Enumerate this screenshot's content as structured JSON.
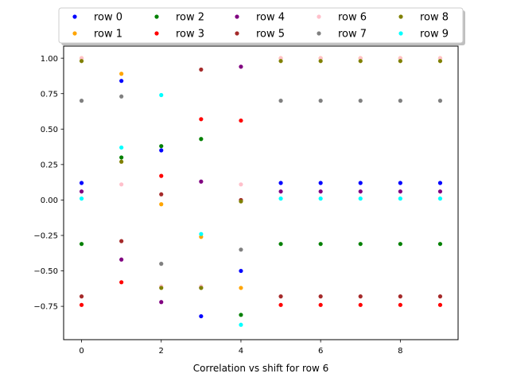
{
  "chart_data": {
    "type": "scatter",
    "title": "",
    "xlabel": "Correlation vs shift for row 6",
    "ylabel": "",
    "xlim": [
      -0.45,
      9.45
    ],
    "ylim": [
      -0.985,
      1.085
    ],
    "x": [
      0,
      1,
      2,
      3,
      4,
      5,
      6,
      7,
      8,
      9
    ],
    "xticks": [
      0,
      2,
      4,
      6,
      8
    ],
    "xtick_labels": [
      "0",
      "2",
      "4",
      "6",
      "8"
    ],
    "yticks": [
      -0.75,
      -0.5,
      -0.25,
      0.0,
      0.25,
      0.5,
      0.75,
      1.0
    ],
    "ytick_labels": [
      "−0.75",
      "−0.50",
      "−0.25",
      "0.00",
      "0.25",
      "0.50",
      "0.75",
      "1.00"
    ],
    "grid": false,
    "legend": {
      "placement": "top-center, above the axes",
      "columns": 5
    },
    "series": [
      {
        "name": "row 0",
        "color": "#0000ff",
        "values": [
          0.12,
          0.84,
          0.35,
          -0.82,
          -0.5,
          0.12,
          0.12,
          0.12,
          0.12,
          0.12
        ]
      },
      {
        "name": "row 1",
        "color": "#ffa500",
        "values": [
          1.0,
          0.89,
          -0.03,
          -0.26,
          -0.62,
          1.0,
          1.0,
          1.0,
          1.0,
          1.0
        ]
      },
      {
        "name": "row 2",
        "color": "#008000",
        "values": [
          -0.31,
          0.3,
          0.38,
          0.43,
          -0.81,
          -0.31,
          -0.31,
          -0.31,
          -0.31,
          -0.31
        ]
      },
      {
        "name": "row 3",
        "color": "#ff0000",
        "values": [
          -0.74,
          -0.58,
          0.17,
          0.57,
          0.56,
          -0.74,
          -0.74,
          -0.74,
          -0.74,
          -0.74
        ]
      },
      {
        "name": "row 4",
        "color": "#800080",
        "values": [
          0.06,
          -0.42,
          -0.72,
          0.13,
          0.94,
          0.06,
          0.06,
          0.06,
          0.06,
          0.06
        ]
      },
      {
        "name": "row 5",
        "color": "#a52a2a",
        "values": [
          -0.68,
          -0.29,
          0.04,
          0.92,
          0.0,
          -0.68,
          -0.68,
          -0.68,
          -0.68,
          -0.68
        ]
      },
      {
        "name": "row 6",
        "color": "#ffc0cb",
        "values": [
          1.0,
          0.11,
          -0.61,
          -0.61,
          0.11,
          1.0,
          1.0,
          1.0,
          1.0,
          1.0
        ]
      },
      {
        "name": "row 7",
        "color": "#808080",
        "values": [
          0.7,
          0.73,
          -0.45,
          -0.62,
          -0.35,
          0.7,
          0.7,
          0.7,
          0.7,
          0.7
        ]
      },
      {
        "name": "row 8",
        "color": "#808000",
        "values": [
          0.98,
          0.27,
          -0.62,
          -0.62,
          -0.01,
          0.98,
          0.98,
          0.98,
          0.98,
          0.98
        ]
      },
      {
        "name": "row 9",
        "color": "#00ffff",
        "values": [
          0.01,
          0.37,
          0.74,
          -0.24,
          -0.88,
          0.01,
          0.01,
          0.01,
          0.01,
          0.01
        ]
      }
    ]
  }
}
